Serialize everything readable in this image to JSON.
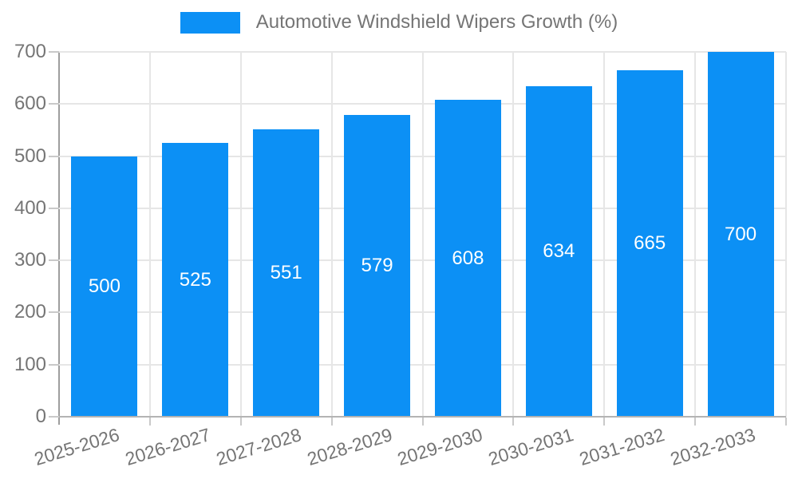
{
  "legend": {
    "label": "Automotive Windshield Wipers Growth (%)"
  },
  "colors": {
    "bar": "#0C90F5",
    "bar_value_text": "#FFFFFF",
    "tick_text": "#757575",
    "gridline": "#E6E6E6",
    "axis_y": "#9E9E9E",
    "axis_x": "#B3B3B3"
  },
  "chart_data": {
    "type": "bar",
    "title": "Automotive Windshield Wipers Growth (%)",
    "categories": [
      "2025-2026",
      "2026-2027",
      "2027-2028",
      "2028-2029",
      "2029-2030",
      "2030-2031",
      "2031-2032",
      "2032-2033"
    ],
    "values": [
      500,
      525,
      551,
      579,
      608,
      634,
      665,
      700
    ],
    "xlabel": "",
    "ylabel": "",
    "ylim": [
      0,
      700
    ],
    "yticks": [
      0,
      100,
      200,
      300,
      400,
      500,
      600,
      700
    ],
    "grid": true,
    "legend_position": "top-center",
    "value_label_position": "inside-middle",
    "x_tick_rotation_deg": -17
  }
}
